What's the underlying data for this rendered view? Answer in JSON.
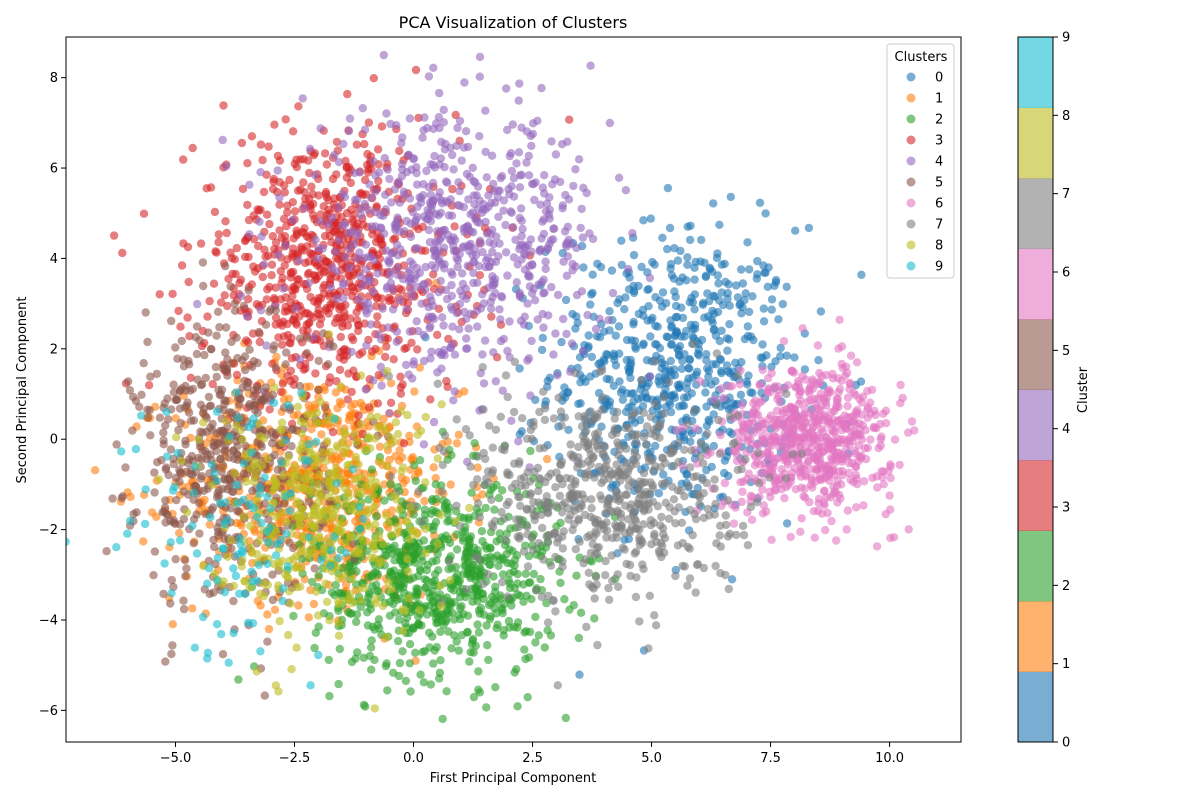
{
  "chart_data": {
    "type": "scatter",
    "title": "PCA Visualization of Clusters",
    "xlabel": "First Principal Component",
    "ylabel": "Second Principal Component",
    "xlim": [
      -7.3,
      11.5
    ],
    "ylim": [
      -6.7,
      8.9
    ],
    "x_ticks": [
      -5.0,
      -2.5,
      0.0,
      2.5,
      5.0,
      7.5,
      10.0
    ],
    "x_tick_labels": [
      "−5.0",
      "−2.5",
      "0.0",
      "2.5",
      "5.0",
      "7.5",
      "10.0"
    ],
    "y_ticks": [
      -6,
      -4,
      -2,
      0,
      2,
      4,
      6,
      8
    ],
    "y_tick_labels": [
      "−6",
      "−4",
      "−2",
      "0",
      "2",
      "4",
      "6",
      "8"
    ],
    "grid": false,
    "legend": {
      "title": "Clusters",
      "placement": "top-right",
      "labels": [
        "0",
        "1",
        "2",
        "3",
        "4",
        "5",
        "6",
        "7",
        "8",
        "9"
      ]
    },
    "colorbar": {
      "label": "Cluster",
      "ticks": [
        0,
        1,
        2,
        3,
        4,
        5,
        6,
        7,
        8,
        9
      ],
      "tick_labels": [
        "0",
        "1",
        "2",
        "3",
        "4",
        "5",
        "6",
        "7",
        "8",
        "9"
      ]
    },
    "marker_alpha": 0.6,
    "series": [
      {
        "name": "0",
        "color": "#1f77b4",
        "center": [
          5.5,
          1.5
        ],
        "spread": [
          1.3,
          1.6
        ],
        "count": 650
      },
      {
        "name": "1",
        "color": "#ff7f0e",
        "center": [
          -2.0,
          -1.0
        ],
        "spread": [
          1.5,
          1.3
        ],
        "count": 600
      },
      {
        "name": "2",
        "color": "#2ca02c",
        "center": [
          0.5,
          -3.0
        ],
        "spread": [
          1.3,
          1.1
        ],
        "count": 750
      },
      {
        "name": "3",
        "color": "#d62728",
        "center": [
          -1.8,
          3.8
        ],
        "spread": [
          1.4,
          1.5
        ],
        "count": 750
      },
      {
        "name": "4",
        "color": "#9467bd",
        "center": [
          0.8,
          4.3
        ],
        "spread": [
          1.6,
          1.4
        ],
        "count": 700
      },
      {
        "name": "5",
        "color": "#8c564b",
        "center": [
          -3.8,
          -0.5
        ],
        "spread": [
          1.0,
          1.6
        ],
        "count": 550
      },
      {
        "name": "6",
        "color": "#e377c2",
        "center": [
          8.3,
          0.0
        ],
        "spread": [
          0.9,
          0.8
        ],
        "count": 650
      },
      {
        "name": "7",
        "color": "#7f7f7f",
        "center": [
          4.0,
          -1.2
        ],
        "spread": [
          1.4,
          1.2
        ],
        "count": 600
      },
      {
        "name": "8",
        "color": "#bcbd22",
        "center": [
          -2.0,
          -1.5
        ],
        "spread": [
          1.2,
          1.3
        ],
        "count": 400
      },
      {
        "name": "9",
        "color": "#17becf",
        "center": [
          -3.5,
          -2.0
        ],
        "spread": [
          1.3,
          1.5
        ],
        "count": 120
      }
    ]
  }
}
